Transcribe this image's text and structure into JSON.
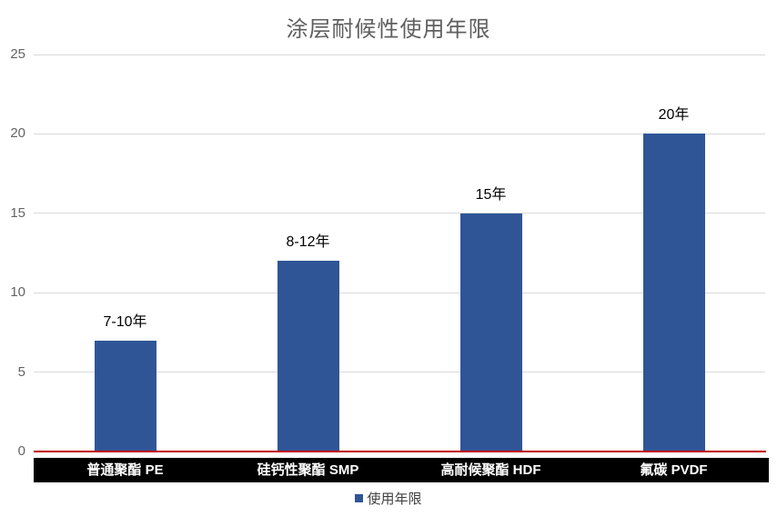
{
  "chart_data": {
    "type": "bar",
    "title": "涂层耐候性使用年限",
    "categories": [
      "普通聚酯 PE",
      "硅钙性聚酯 SMP",
      "高耐候聚酯 HDF",
      "氟碳 PVDF"
    ],
    "values": [
      7,
      12,
      15,
      20
    ],
    "data_labels": [
      "7-10年",
      "8-12年",
      "15年",
      "20年"
    ],
    "series_name": "使用年限",
    "xlabel": "",
    "ylabel": "",
    "ylim": [
      0,
      25
    ],
    "y_ticks": [
      0,
      5,
      10,
      15,
      20,
      25
    ],
    "grid": true,
    "legend_position": "bottom",
    "legend": [
      {
        "label": "使用年限",
        "color": "#2F5597"
      }
    ],
    "colors": {
      "bar": "#2F5597",
      "axis_line": "#C00000",
      "gridline": "#D9D9D9",
      "category_band_bg": "#000000",
      "category_band_text": "#FFFFFF",
      "title_text": "#5F5F5F",
      "tick_text": "#636363",
      "data_label_text": "#000000"
    }
  }
}
